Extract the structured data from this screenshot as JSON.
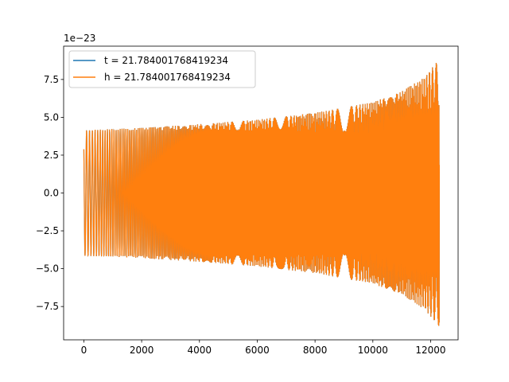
{
  "chart_data": {
    "type": "line",
    "title": "",
    "xlabel": "",
    "ylabel": "",
    "y_offset_label": "1e−23",
    "xlim": [
      -700,
      12950
    ],
    "ylim": [
      -9.7,
      9.7
    ],
    "xticks": [
      0,
      2000,
      4000,
      6000,
      8000,
      10000,
      12000
    ],
    "xtick_labels": [
      "0",
      "2000",
      "4000",
      "6000",
      "8000",
      "10000",
      "12000"
    ],
    "yticks": [
      -7.5,
      -5.0,
      -2.5,
      0.0,
      2.5,
      5.0,
      7.5
    ],
    "ytick_labels": [
      "−7.5",
      "−5.0",
      "−2.5",
      "0.0",
      "2.5",
      "5.0",
      "7.5"
    ],
    "grid": false,
    "legend_placement": "upper-left",
    "x_end": 12300,
    "envelope": [
      {
        "x": 0,
        "amp": 4.15
      },
      {
        "x": 2000,
        "amp": 4.3
      },
      {
        "x": 4000,
        "amp": 4.55
      },
      {
        "x": 6000,
        "amp": 4.85
      },
      {
        "x": 8000,
        "amp": 5.3
      },
      {
        "x": 10000,
        "amp": 6.0
      },
      {
        "x": 11000,
        "amp": 6.7
      },
      {
        "x": 11800,
        "amp": 7.7
      },
      {
        "x": 12300,
        "amp": 8.85
      }
    ],
    "series": [
      {
        "name": "t = 21.784001768419234",
        "color": "#1f77b4"
      },
      {
        "name": "h = 21.784001768419234",
        "color": "#ff7f0e"
      }
    ]
  }
}
